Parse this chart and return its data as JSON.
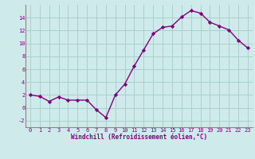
{
  "x": [
    0,
    1,
    2,
    3,
    4,
    5,
    6,
    7,
    8,
    9,
    10,
    11,
    12,
    13,
    14,
    15,
    16,
    17,
    18,
    19,
    20,
    21,
    22,
    23
  ],
  "y": [
    2,
    1.8,
    1,
    1.7,
    1.2,
    1.2,
    1.2,
    -0.3,
    -1.5,
    2,
    3.7,
    6.5,
    9,
    11.5,
    12.5,
    12.7,
    14.1,
    15.1,
    14.7,
    13.3,
    12.7,
    12.1,
    10.5,
    9.3
  ],
  "line_color": "#800080",
  "marker": "D",
  "marker_size": 2.2,
  "linewidth": 1.0,
  "xlabel": "Windchill (Refroidissement éolien,°C)",
  "xlim_min": -0.5,
  "xlim_max": 23.5,
  "ylim_min": -3,
  "ylim_max": 16,
  "yticks": [
    -2,
    0,
    2,
    4,
    6,
    8,
    10,
    12,
    14
  ],
  "xticks": [
    0,
    1,
    2,
    3,
    4,
    5,
    6,
    7,
    8,
    9,
    10,
    11,
    12,
    13,
    14,
    15,
    16,
    17,
    18,
    19,
    20,
    21,
    22,
    23
  ],
  "bg_color": "#ceeaea",
  "grid_color": "#aacfcf",
  "tick_color": "#800080",
  "label_color": "#800080",
  "tick_fontsize": 5.0,
  "xlabel_fontsize": 5.5,
  "spine_color": "#888888"
}
